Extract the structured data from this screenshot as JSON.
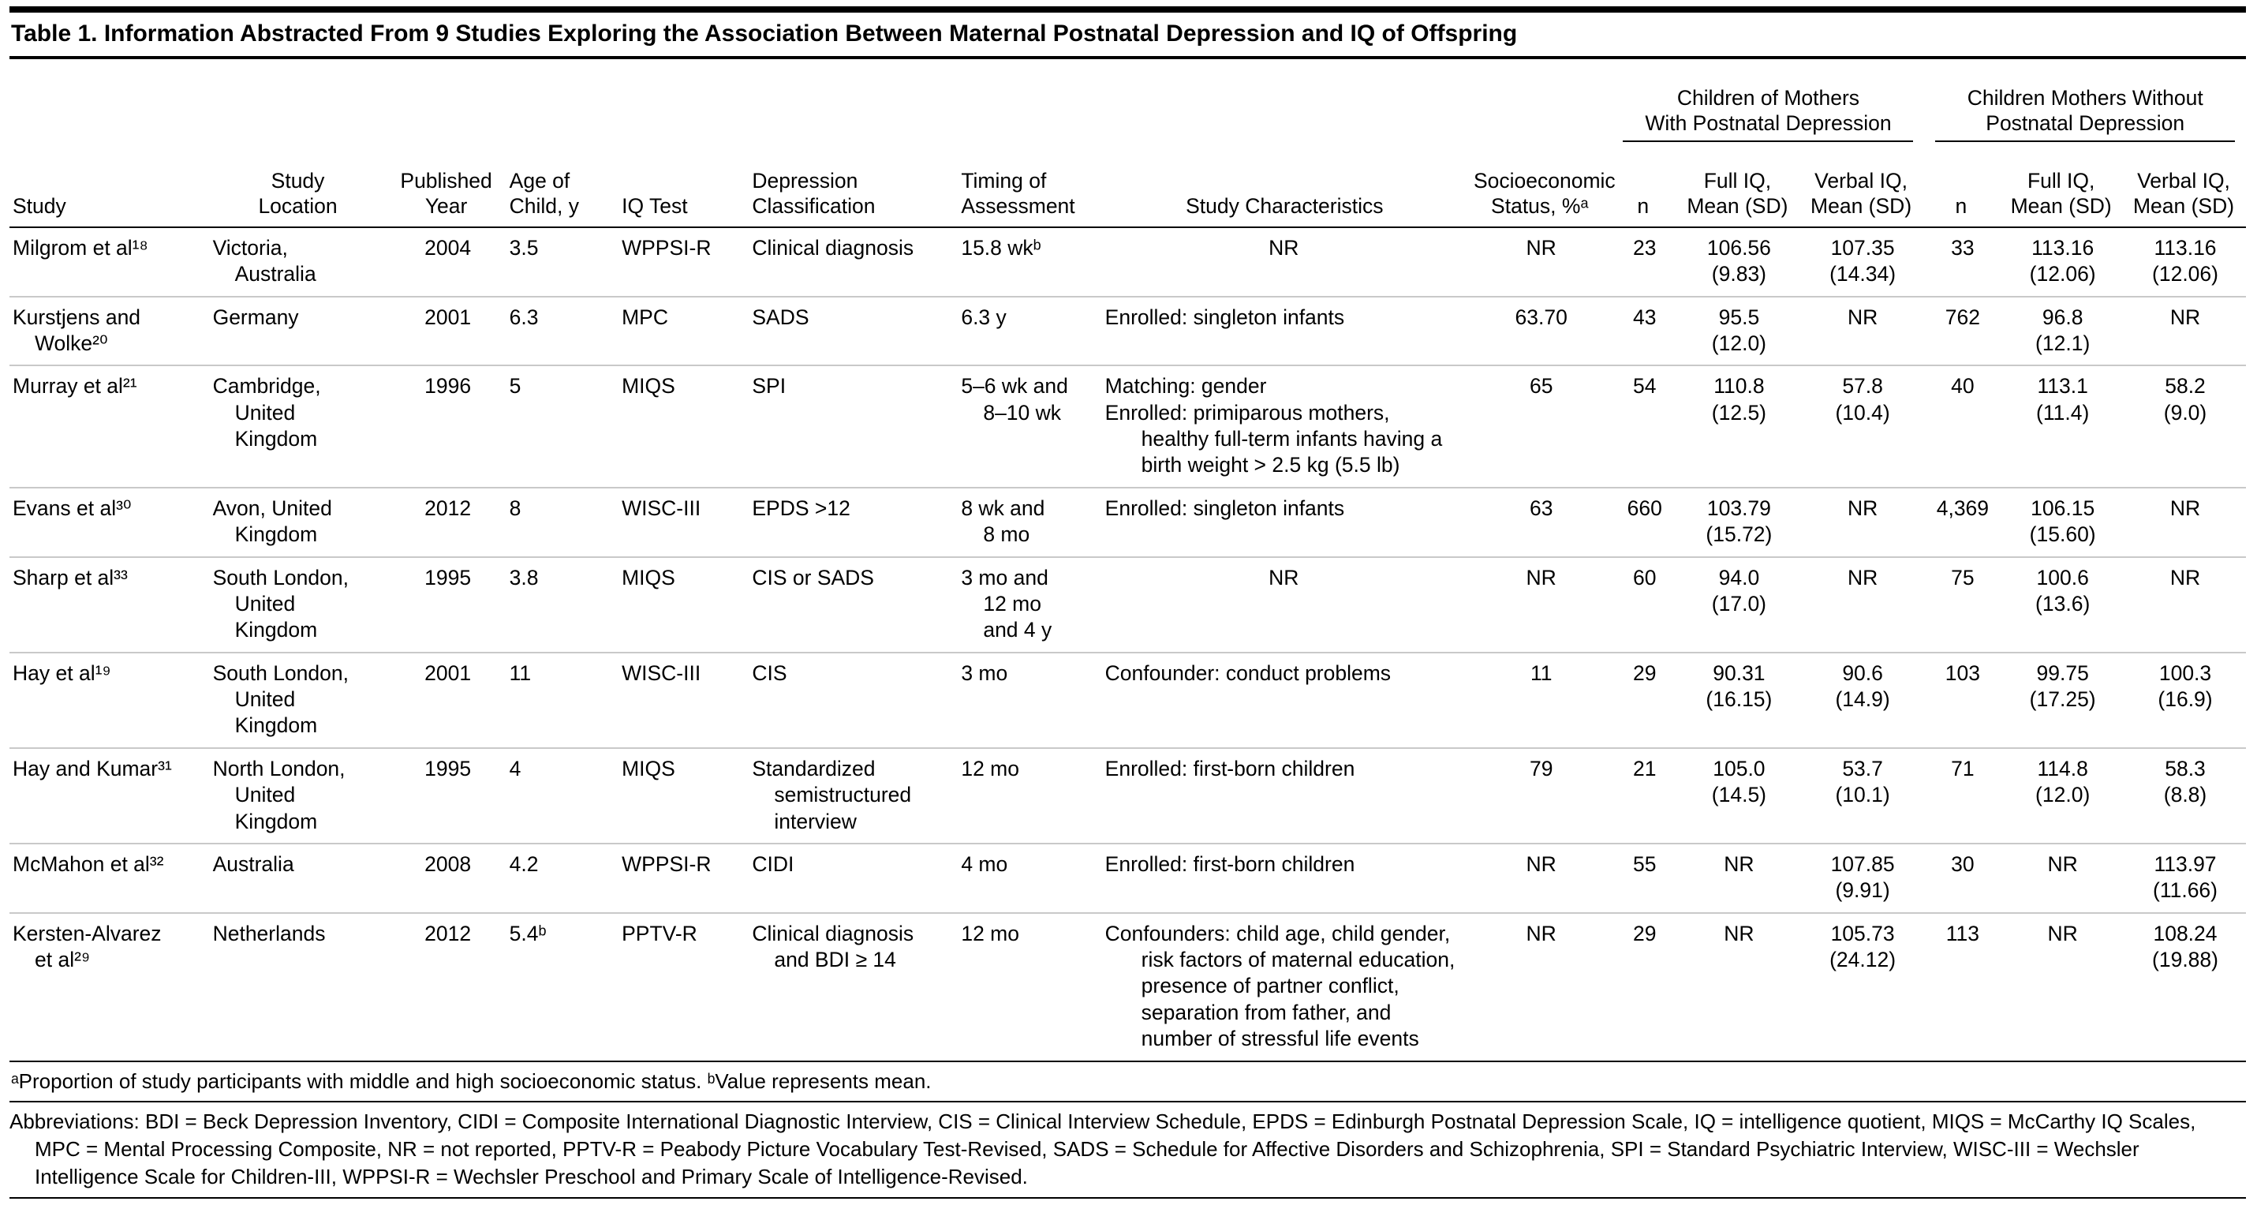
{
  "table": {
    "title": "Table 1. Information Abstracted From 9 Studies Exploring the Association Between Maternal Postnatal Depression and IQ of Offspring",
    "group_headers": {
      "with_depression": "Children of Mothers\nWith Postnatal Depression",
      "without_depression": "Children Mothers Without\nPostnatal Depression"
    },
    "columns": [
      "Study",
      "Study\nLocation",
      "Published\nYear",
      "Age of\nChild, y",
      "IQ Test",
      "Depression\nClassification",
      "Timing of\nAssessment",
      "Study Characteristics",
      "Socioeconomic\nStatus, %ᵃ",
      "n",
      "Full IQ,\nMean (SD)",
      "Verbal IQ,\nMean (SD)",
      "n",
      "Full IQ,\nMean (SD)",
      "Verbal IQ,\nMean (SD)"
    ],
    "rows": [
      {
        "study": "Milgrom et al¹⁸",
        "location": "Victoria,\nAustralia",
        "published_year": "2004",
        "age_of_child": "3.5",
        "iq_test": "WPPSI-R",
        "depression_classification": "Clinical diagnosis",
        "timing_of_assessment": "15.8 wkᵇ",
        "study_characteristics": "NR",
        "socioeconomic_status": "NR",
        "dep_n": "23",
        "dep_full_iq": "106.56\n(9.83)",
        "dep_verbal_iq": "107.35\n(14.34)",
        "nodep_n": "33",
        "nodep_full_iq": "113.16\n(12.06)",
        "nodep_verbal_iq": "113.16\n(12.06)"
      },
      {
        "study": "Kurstjens and\nWolke²⁰",
        "location": "Germany",
        "published_year": "2001",
        "age_of_child": "6.3",
        "iq_test": "MPC",
        "depression_classification": "SADS",
        "timing_of_assessment": "6.3 y",
        "study_characteristics": [
          "Enrolled: singleton infants"
        ],
        "socioeconomic_status": "63.70",
        "dep_n": "43",
        "dep_full_iq": "95.5\n(12.0)",
        "dep_verbal_iq": "NR",
        "nodep_n": "762",
        "nodep_full_iq": "96.8\n(12.1)",
        "nodep_verbal_iq": "NR"
      },
      {
        "study": "Murray et al²¹",
        "location": "Cambridge,\nUnited\nKingdom",
        "published_year": "1996",
        "age_of_child": "5",
        "iq_test": "MIQS",
        "depression_classification": "SPI",
        "timing_of_assessment": "5–6 wk and\n8–10 wk",
        "study_characteristics": [
          "Matching: gender",
          "Enrolled: primiparous mothers, healthy full-term infants having a birth weight > 2.5 kg (5.5 lb)"
        ],
        "socioeconomic_status": "65",
        "dep_n": "54",
        "dep_full_iq": "110.8\n(12.5)",
        "dep_verbal_iq": "57.8\n(10.4)",
        "nodep_n": "40",
        "nodep_full_iq": "113.1\n(11.4)",
        "nodep_verbal_iq": "58.2\n(9.0)"
      },
      {
        "study": "Evans et al³⁰",
        "location": "Avon, United\nKingdom",
        "published_year": "2012",
        "age_of_child": "8",
        "iq_test": "WISC-III",
        "depression_classification": "EPDS >12",
        "timing_of_assessment": "8 wk and\n8 mo",
        "study_characteristics": [
          "Enrolled: singleton infants"
        ],
        "socioeconomic_status": "63",
        "dep_n": "660",
        "dep_full_iq": "103.79\n(15.72)",
        "dep_verbal_iq": "NR",
        "nodep_n": "4,369",
        "nodep_full_iq": "106.15\n(15.60)",
        "nodep_verbal_iq": "NR"
      },
      {
        "study": "Sharp et al³³",
        "location": "South London,\nUnited\nKingdom",
        "published_year": "1995",
        "age_of_child": "3.8",
        "iq_test": "MIQS",
        "depression_classification": "CIS or SADS",
        "timing_of_assessment": "3 mo and\n12 mo\nand 4 y",
        "study_characteristics": "NR",
        "socioeconomic_status": "NR",
        "dep_n": "60",
        "dep_full_iq": "94.0\n(17.0)",
        "dep_verbal_iq": "NR",
        "nodep_n": "75",
        "nodep_full_iq": "100.6\n(13.6)",
        "nodep_verbal_iq": "NR"
      },
      {
        "study": "Hay et al¹⁹",
        "location": "South London,\nUnited\nKingdom",
        "published_year": "2001",
        "age_of_child": "11",
        "iq_test": "WISC-III",
        "depression_classification": "CIS",
        "timing_of_assessment": "3 mo",
        "study_characteristics": [
          "Confounder: conduct problems"
        ],
        "socioeconomic_status": "11",
        "dep_n": "29",
        "dep_full_iq": "90.31\n(16.15)",
        "dep_verbal_iq": "90.6\n(14.9)",
        "nodep_n": "103",
        "nodep_full_iq": "99.75\n(17.25)",
        "nodep_verbal_iq": "100.3\n(16.9)"
      },
      {
        "study": "Hay and Kumar³¹",
        "location": "North London,\nUnited\nKingdom",
        "published_year": "1995",
        "age_of_child": "4",
        "iq_test": "MIQS",
        "depression_classification": "Standardized semistructured interview",
        "timing_of_assessment": "12 mo",
        "study_characteristics": [
          "Enrolled: first-born children"
        ],
        "socioeconomic_status": "79",
        "dep_n": "21",
        "dep_full_iq": "105.0\n(14.5)",
        "dep_verbal_iq": "53.7\n(10.1)",
        "nodep_n": "71",
        "nodep_full_iq": "114.8\n(12.0)",
        "nodep_verbal_iq": "58.3\n(8.8)"
      },
      {
        "study": "McMahon et al³²",
        "location": "Australia",
        "published_year": "2008",
        "age_of_child": "4.2",
        "iq_test": "WPPSI-R",
        "depression_classification": "CIDI",
        "timing_of_assessment": "4 mo",
        "study_characteristics": [
          "Enrolled: first-born children"
        ],
        "socioeconomic_status": "NR",
        "dep_n": "55",
        "dep_full_iq": "NR",
        "dep_verbal_iq": "107.85\n(9.91)",
        "nodep_n": "30",
        "nodep_full_iq": "NR",
        "nodep_verbal_iq": "113.97\n(11.66)"
      },
      {
        "study": "Kersten-Alvarez\net al²⁹",
        "location": "Netherlands",
        "published_year": "2012",
        "age_of_child": "5.4ᵇ",
        "iq_test": "PPTV-R",
        "depression_classification": "Clinical diagnosis and BDI ≥ 14",
        "timing_of_assessment": "12 mo",
        "study_characteristics": [
          "Confounders: child age, child gender, risk factors of maternal education, presence of partner conflict, separation from father, and number of stressful life events"
        ],
        "socioeconomic_status": "NR",
        "dep_n": "29",
        "dep_full_iq": "NR",
        "dep_verbal_iq": "105.73\n(24.12)",
        "nodep_n": "113",
        "nodep_full_iq": "NR",
        "nodep_verbal_iq": "108.24\n(19.88)"
      }
    ],
    "footnotes": {
      "note_ab": "ᵃProportion of study participants with middle and high socioeconomic status.  ᵇValue represents mean.",
      "abbreviations": "Abbreviations: BDI = Beck Depression Inventory, CIDI = Composite International Diagnostic Interview, CIS = Clinical Interview Schedule, EPDS = Edinburgh Postnatal Depression Scale, IQ = intelligence quotient, MIQS = McCarthy IQ Scales, MPC = Mental Processing Composite, NR = not reported, PPTV-R = Peabody Picture Vocabulary Test-Revised, SADS = Schedule for Affective Disorders and Schizophrenia, SPI = Standard Psychiatric Interview, WISC-III = Wechsler Intelligence Scale for Children-III, WPPSI-R = Wechsler Preschool and Primary Scale of Intelligence-Revised."
    }
  }
}
